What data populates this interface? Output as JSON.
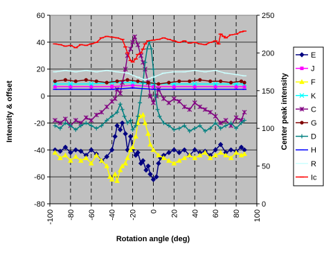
{
  "chart_data": {
    "type": "line",
    "title": "",
    "xlabel": "Rotation angle (deg)",
    "ylabel": "Intensity & offset",
    "y2label": "Center peak intensity",
    "xlim": [
      -100,
      100
    ],
    "ylim": [
      -80,
      60
    ],
    "y2lim": [
      0,
      250
    ],
    "xticks": [
      -100,
      -80,
      -60,
      -40,
      -20,
      0,
      20,
      40,
      60,
      80,
      100
    ],
    "yticks": [
      -80,
      -60,
      -40,
      -20,
      0,
      20,
      40,
      60
    ],
    "y2ticks": [
      0,
      50,
      100,
      150,
      200,
      250
    ],
    "plot_background": "#c0c0c0",
    "vertical_gridlines": "dashed",
    "horizontal_gridlines": "solid",
    "legend_position": "right",
    "series": [
      {
        "name": "E",
        "color": "#000080",
        "marker": "diamond",
        "axis": "left",
        "points": [
          [
            -95,
            -40
          ],
          [
            -90,
            -41
          ],
          [
            -85,
            -38
          ],
          [
            -80,
            -42
          ],
          [
            -75,
            -40
          ],
          [
            -70,
            -41
          ],
          [
            -65,
            -44
          ],
          [
            -60,
            -40
          ],
          [
            -55,
            -43
          ],
          [
            -50,
            -48
          ],
          [
            -45,
            -45
          ],
          [
            -40,
            -40
          ],
          [
            -37,
            -30
          ],
          [
            -35,
            -22
          ],
          [
            -32,
            -25
          ],
          [
            -30,
            -20
          ],
          [
            -27,
            -28
          ],
          [
            -25,
            -40
          ],
          [
            -22,
            -30
          ],
          [
            -20,
            -40
          ],
          [
            -17,
            -44
          ],
          [
            -15,
            -42
          ],
          [
            -12,
            -50
          ],
          [
            -10,
            -48
          ],
          [
            -7,
            -55
          ],
          [
            -5,
            -52
          ],
          [
            -3,
            -58
          ],
          [
            0,
            -62
          ],
          [
            3,
            -60
          ],
          [
            5,
            -50
          ],
          [
            7,
            -46
          ],
          [
            10,
            -44
          ],
          [
            15,
            -42
          ],
          [
            20,
            -40
          ],
          [
            25,
            -42
          ],
          [
            30,
            -40
          ],
          [
            35,
            -44
          ],
          [
            40,
            -40
          ],
          [
            45,
            -42
          ],
          [
            50,
            -41
          ],
          [
            55,
            -44
          ],
          [
            60,
            -40
          ],
          [
            65,
            -36
          ],
          [
            70,
            -42
          ],
          [
            75,
            -40
          ],
          [
            80,
            -41
          ],
          [
            85,
            -38
          ],
          [
            88,
            -40
          ]
        ]
      },
      {
        "name": "J",
        "color": "#ff00ff",
        "marker": "square",
        "axis": "left",
        "points": [
          [
            -95,
            7
          ],
          [
            -80,
            7
          ],
          [
            -60,
            7
          ],
          [
            -40,
            7
          ],
          [
            -20,
            8
          ],
          [
            0,
            7
          ],
          [
            20,
            7
          ],
          [
            40,
            7
          ],
          [
            60,
            7
          ],
          [
            80,
            7
          ],
          [
            88,
            7
          ]
        ]
      },
      {
        "name": "F",
        "color": "#ffff00",
        "marker": "triangle",
        "axis": "left",
        "points": [
          [
            -95,
            -42
          ],
          [
            -90,
            -46
          ],
          [
            -85,
            -44
          ],
          [
            -80,
            -48
          ],
          [
            -75,
            -45
          ],
          [
            -70,
            -48
          ],
          [
            -65,
            -46
          ],
          [
            -60,
            -50
          ],
          [
            -55,
            -44
          ],
          [
            -50,
            -48
          ],
          [
            -45,
            -52
          ],
          [
            -42,
            -60
          ],
          [
            -40,
            -62
          ],
          [
            -37,
            -58
          ],
          [
            -35,
            -63
          ],
          [
            -32,
            -55
          ],
          [
            -30,
            -52
          ],
          [
            -27,
            -50
          ],
          [
            -25,
            -46
          ],
          [
            -22,
            -40
          ],
          [
            -20,
            -38
          ],
          [
            -17,
            -30
          ],
          [
            -15,
            -20
          ],
          [
            -13,
            -15
          ],
          [
            -10,
            -14
          ],
          [
            -8,
            -20
          ],
          [
            -5,
            -28
          ],
          [
            -3,
            -36
          ],
          [
            0,
            -40
          ],
          [
            5,
            -44
          ],
          [
            10,
            -46
          ],
          [
            15,
            -48
          ],
          [
            20,
            -50
          ],
          [
            25,
            -48
          ],
          [
            30,
            -46
          ],
          [
            35,
            -44
          ],
          [
            40,
            -46
          ],
          [
            45,
            -44
          ],
          [
            50,
            -42
          ],
          [
            55,
            -46
          ],
          [
            60,
            -44
          ],
          [
            65,
            -42
          ],
          [
            70,
            -44
          ],
          [
            75,
            -46
          ],
          [
            80,
            -42
          ],
          [
            85,
            -44
          ],
          [
            88,
            -43
          ]
        ]
      },
      {
        "name": "K",
        "color": "#00ffff",
        "marker": "x",
        "axis": "left",
        "points": [
          [
            -95,
            9
          ],
          [
            -80,
            9
          ],
          [
            -60,
            9
          ],
          [
            -40,
            10
          ],
          [
            -20,
            10
          ],
          [
            0,
            9
          ],
          [
            20,
            9
          ],
          [
            40,
            9
          ],
          [
            60,
            9
          ],
          [
            80,
            9
          ],
          [
            88,
            9
          ]
        ]
      },
      {
        "name": "C",
        "color": "#800080",
        "marker": "star",
        "axis": "left",
        "points": [
          [
            -95,
            -18
          ],
          [
            -90,
            -20
          ],
          [
            -85,
            -17
          ],
          [
            -80,
            -22
          ],
          [
            -75,
            -18
          ],
          [
            -70,
            -20
          ],
          [
            -65,
            -16
          ],
          [
            -60,
            -18
          ],
          [
            -55,
            -14
          ],
          [
            -50,
            -12
          ],
          [
            -45,
            -8
          ],
          [
            -40,
            -4
          ],
          [
            -37,
            -2
          ],
          [
            -35,
            5
          ],
          [
            -32,
            2
          ],
          [
            -30,
            10
          ],
          [
            -27,
            20
          ],
          [
            -25,
            30
          ],
          [
            -22,
            35
          ],
          [
            -20,
            40
          ],
          [
            -18,
            44
          ],
          [
            -15,
            38
          ],
          [
            -12,
            30
          ],
          [
            -10,
            25
          ],
          [
            -8,
            20
          ],
          [
            -5,
            10
          ],
          [
            -3,
            0
          ],
          [
            0,
            -5
          ],
          [
            3,
            0
          ],
          [
            5,
            5
          ],
          [
            10,
            -2
          ],
          [
            15,
            -5
          ],
          [
            20,
            -2
          ],
          [
            25,
            -4
          ],
          [
            30,
            -8
          ],
          [
            35,
            -10
          ],
          [
            40,
            -5
          ],
          [
            45,
            -8
          ],
          [
            50,
            -10
          ],
          [
            55,
            -12
          ],
          [
            60,
            -15
          ],
          [
            65,
            -20
          ],
          [
            70,
            -18
          ],
          [
            75,
            -22
          ],
          [
            80,
            -16
          ],
          [
            85,
            -18
          ],
          [
            88,
            -12
          ]
        ]
      },
      {
        "name": "G",
        "color": "#800000",
        "marker": "circle",
        "axis": "left",
        "points": [
          [
            -95,
            11
          ],
          [
            -85,
            12
          ],
          [
            -75,
            11
          ],
          [
            -65,
            12
          ],
          [
            -55,
            11
          ],
          [
            -45,
            10
          ],
          [
            -35,
            11
          ],
          [
            -25,
            12
          ],
          [
            -15,
            11
          ],
          [
            -5,
            10
          ],
          [
            5,
            9
          ],
          [
            15,
            10
          ],
          [
            25,
            11
          ],
          [
            35,
            11
          ],
          [
            45,
            12
          ],
          [
            55,
            11
          ],
          [
            65,
            11
          ],
          [
            75,
            10
          ],
          [
            85,
            11
          ],
          [
            88,
            10
          ]
        ]
      },
      {
        "name": "D",
        "color": "#008080",
        "marker": "plus",
        "axis": "left",
        "points": [
          [
            -95,
            -22
          ],
          [
            -90,
            -24
          ],
          [
            -85,
            -20
          ],
          [
            -80,
            -22
          ],
          [
            -75,
            -25
          ],
          [
            -70,
            -22
          ],
          [
            -65,
            -20
          ],
          [
            -60,
            -22
          ],
          [
            -55,
            -24
          ],
          [
            -50,
            -22
          ],
          [
            -45,
            -18
          ],
          [
            -40,
            -15
          ],
          [
            -35,
            -12
          ],
          [
            -32,
            -6
          ],
          [
            -30,
            -10
          ],
          [
            -28,
            -15
          ],
          [
            -25,
            -20
          ],
          [
            -22,
            -18
          ],
          [
            -20,
            -25
          ],
          [
            -17,
            -22
          ],
          [
            -15,
            -15
          ],
          [
            -13,
            -5
          ],
          [
            -10,
            10
          ],
          [
            -8,
            25
          ],
          [
            -6,
            35
          ],
          [
            -4,
            40
          ],
          [
            -2,
            35
          ],
          [
            0,
            20
          ],
          [
            2,
            0
          ],
          [
            4,
            -10
          ],
          [
            6,
            -15
          ],
          [
            10,
            -20
          ],
          [
            15,
            -22
          ],
          [
            20,
            -25
          ],
          [
            25,
            -24
          ],
          [
            30,
            -22
          ],
          [
            35,
            -26
          ],
          [
            40,
            -24
          ],
          [
            45,
            -22
          ],
          [
            50,
            -26
          ],
          [
            55,
            -24
          ],
          [
            60,
            -20
          ],
          [
            65,
            -24
          ],
          [
            70,
            -22
          ],
          [
            75,
            -20
          ],
          [
            80,
            -24
          ],
          [
            85,
            -20
          ],
          [
            88,
            -18
          ]
        ]
      },
      {
        "name": "H",
        "color": "#0000ff",
        "marker": "dash",
        "axis": "left",
        "points": [
          [
            -95,
            5
          ],
          [
            -80,
            5
          ],
          [
            -60,
            5
          ],
          [
            -40,
            5
          ],
          [
            -20,
            6
          ],
          [
            0,
            5
          ],
          [
            20,
            5
          ],
          [
            40,
            5
          ],
          [
            60,
            5
          ],
          [
            80,
            5
          ],
          [
            88,
            5
          ]
        ]
      },
      {
        "name": "R",
        "color": "#ccffff",
        "marker": "dash",
        "axis": "left",
        "points": [
          [
            -95,
            18
          ],
          [
            -85,
            19
          ],
          [
            -75,
            18
          ],
          [
            -65,
            19
          ],
          [
            -55,
            18
          ],
          [
            -45,
            19
          ],
          [
            -35,
            18
          ],
          [
            -25,
            17
          ],
          [
            -15,
            14
          ],
          [
            -8,
            12
          ],
          [
            0,
            14
          ],
          [
            10,
            17
          ],
          [
            20,
            18
          ],
          [
            30,
            18
          ],
          [
            40,
            19
          ],
          [
            50,
            18
          ],
          [
            60,
            19
          ],
          [
            70,
            17
          ],
          [
            80,
            16
          ],
          [
            88,
            15
          ]
        ]
      },
      {
        "name": "Ic",
        "color": "#ff0000",
        "marker": "dash",
        "axis": "right",
        "points": [
          [
            -95,
            212
          ],
          [
            -90,
            211
          ],
          [
            -85,
            209
          ],
          [
            -80,
            210
          ],
          [
            -75,
            207
          ],
          [
            -70,
            211
          ],
          [
            -65,
            210
          ],
          [
            -60,
            212
          ],
          [
            -55,
            214
          ],
          [
            -50,
            220
          ],
          [
            -45,
            222
          ],
          [
            -40,
            221
          ],
          [
            -35,
            220
          ],
          [
            -30,
            218
          ],
          [
            -27,
            208
          ],
          [
            -25,
            200
          ],
          [
            -22,
            190
          ],
          [
            -20,
            188
          ],
          [
            -17,
            192
          ],
          [
            -15,
            198
          ],
          [
            -12,
            200
          ],
          [
            -10,
            205
          ],
          [
            -8,
            212
          ],
          [
            -5,
            216
          ],
          [
            0,
            217
          ],
          [
            5,
            218
          ],
          [
            10,
            220
          ],
          [
            15,
            218
          ],
          [
            20,
            216
          ],
          [
            25,
            214
          ],
          [
            30,
            216
          ],
          [
            35,
            213
          ],
          [
            40,
            214
          ],
          [
            45,
            212
          ],
          [
            50,
            211
          ],
          [
            55,
            214
          ],
          [
            60,
            216
          ],
          [
            63,
            212
          ],
          [
            65,
            225
          ],
          [
            68,
            222
          ],
          [
            70,
            220
          ],
          [
            75,
            224
          ],
          [
            80,
            225
          ],
          [
            85,
            228
          ],
          [
            88,
            229
          ]
        ]
      }
    ]
  }
}
